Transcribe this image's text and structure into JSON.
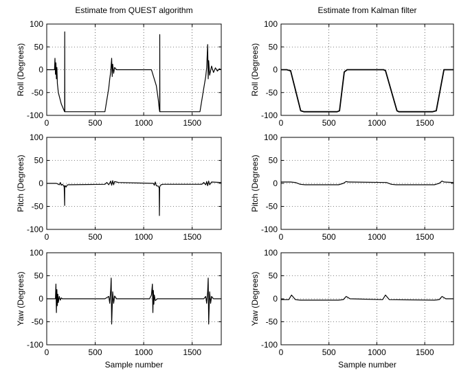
{
  "chart_data": [
    {
      "type": "line",
      "title": "Estimate from QUEST algorithm",
      "ylabel": "Roll (Degrees)",
      "xlabel": "",
      "xlim": [
        0,
        1800
      ],
      "ylim": [
        -100,
        100
      ],
      "xticks": [
        0,
        500,
        1000,
        1500
      ],
      "yticks": [
        -100,
        -50,
        0,
        50,
        100
      ],
      "grid": true,
      "series": [
        {
          "x": [
            0,
            80,
            85,
            90,
            95,
            100,
            105,
            110,
            120,
            150,
            180,
            185,
            186,
            187,
            190,
            600,
            640,
            650,
            660,
            670,
            675,
            680,
            690,
            700,
            720,
            1080,
            1130,
            1150,
            1160,
            1165,
            1166,
            1167,
            1170,
            1580,
            1620,
            1640,
            1650,
            1660,
            1665,
            1670,
            1680,
            1700,
            1720,
            1740,
            1760,
            1780,
            1800
          ],
          "y": [
            0,
            0,
            25,
            -10,
            15,
            -20,
            5,
            -30,
            -50,
            -75,
            -90,
            -92,
            83,
            -92,
            -92,
            -92,
            -40,
            -20,
            -5,
            25,
            -15,
            12,
            -8,
            5,
            0,
            0,
            -35,
            -65,
            -85,
            -92,
            77,
            -92,
            -92,
            -92,
            -40,
            -15,
            5,
            55,
            -20,
            20,
            -12,
            8,
            -6,
            4,
            -3,
            2,
            0
          ]
        }
      ]
    },
    {
      "type": "line",
      "title": "Estimate from Kalman filter",
      "ylabel": "Roll (Degrees)",
      "xlabel": "",
      "xlim": [
        0,
        1800
      ],
      "ylim": [
        -100,
        100
      ],
      "xticks": [
        0,
        500,
        1000,
        1500
      ],
      "yticks": [
        -100,
        -50,
        0,
        50,
        100
      ],
      "grid": true,
      "series": [
        {
          "x": [
            0,
            60,
            90,
            100,
            205,
            240,
            585,
            610,
            660,
            690,
            1070,
            1090,
            1210,
            1230,
            1580,
            1620,
            1700,
            1800
          ],
          "y": [
            0,
            0,
            -2,
            -2,
            -90,
            -92,
            -92,
            -90,
            -5,
            0,
            0,
            -2,
            -90,
            -92,
            -92,
            -90,
            0,
            0
          ]
        }
      ]
    },
    {
      "type": "line",
      "title": "",
      "ylabel": "Pitch (Degrees)",
      "xlabel": "",
      "xlim": [
        0,
        1800
      ],
      "ylim": [
        -100,
        100
      ],
      "xticks": [
        0,
        500,
        1000,
        1500
      ],
      "yticks": [
        -100,
        -50,
        0,
        50,
        100
      ],
      "grid": true,
      "series": [
        {
          "x": [
            0,
            100,
            130,
            140,
            150,
            160,
            175,
            180,
            185,
            186,
            190,
            200,
            210,
            220,
            600,
            620,
            640,
            660,
            670,
            680,
            690,
            700,
            720,
            740,
            1100,
            1110,
            1120,
            1130,
            1150,
            1160,
            1162,
            1165,
            1170,
            1180,
            1200,
            1600,
            1620,
            1640,
            1650,
            1660,
            1670,
            1680,
            1700,
            1800
          ],
          "y": [
            0,
            0,
            -3,
            2,
            -4,
            -2,
            -5,
            -8,
            -48,
            -5,
            -5,
            -8,
            -4,
            -3,
            -2,
            2,
            -3,
            5,
            -4,
            6,
            -3,
            4,
            3,
            2,
            0,
            -4,
            3,
            -5,
            -6,
            -10,
            -70,
            -8,
            -5,
            -3,
            -2,
            -2,
            2,
            -3,
            4,
            -5,
            5,
            -3,
            3,
            2
          ]
        }
      ]
    },
    {
      "type": "line",
      "title": "",
      "ylabel": "Pitch (Degrees)",
      "xlabel": "",
      "xlim": [
        0,
        1800
      ],
      "ylim": [
        -100,
        100
      ],
      "xticks": [
        0,
        500,
        1000,
        1500
      ],
      "yticks": [
        -100,
        -50,
        0,
        50,
        100
      ],
      "grid": true,
      "series": [
        {
          "x": [
            0,
            100,
            150,
            200,
            250,
            600,
            650,
            680,
            700,
            1100,
            1150,
            1200,
            1600,
            1650,
            1680,
            1700,
            1800
          ],
          "y": [
            3,
            3,
            2,
            -2,
            -3,
            -3,
            0,
            4,
            3,
            2,
            -2,
            -3,
            -3,
            0,
            5,
            3,
            2
          ]
        }
      ]
    },
    {
      "type": "line",
      "title": "",
      "ylabel": "Yaw (Degrees)",
      "xlabel": "Sample number",
      "xlim": [
        0,
        1800
      ],
      "ylim": [
        -100,
        100
      ],
      "xticks": [
        0,
        500,
        1000,
        1500
      ],
      "yticks": [
        -100,
        -50,
        0,
        50,
        100
      ],
      "grid": true,
      "series": [
        {
          "x": [
            0,
            90,
            95,
            100,
            105,
            110,
            115,
            120,
            130,
            140,
            150,
            160,
            600,
            640,
            650,
            660,
            665,
            670,
            680,
            690,
            700,
            720,
            1060,
            1080,
            1090,
            1095,
            1100,
            1105,
            1110,
            1120,
            1140,
            1620,
            1640,
            1650,
            1660,
            1665,
            1670,
            1680,
            1690,
            1700,
            1720,
            1800
          ],
          "y": [
            0,
            0,
            32,
            -30,
            20,
            -15,
            10,
            -8,
            5,
            -3,
            2,
            0,
            0,
            5,
            -10,
            20,
            45,
            -55,
            15,
            -10,
            6,
            0,
            0,
            8,
            32,
            -30,
            18,
            -12,
            8,
            -4,
            0,
            0,
            5,
            -10,
            15,
            45,
            -55,
            15,
            -10,
            5,
            0,
            0
          ]
        }
      ]
    },
    {
      "type": "line",
      "title": "",
      "ylabel": "Yaw (Degrees)",
      "xlabel": "Sample number",
      "xlim": [
        0,
        1800
      ],
      "ylim": [
        -100,
        100
      ],
      "xticks": [
        0,
        500,
        1000,
        1500
      ],
      "yticks": [
        -100,
        -50,
        0,
        50,
        100
      ],
      "grid": true,
      "series": [
        {
          "x": [
            0,
            80,
            110,
            150,
            200,
            600,
            650,
            680,
            720,
            1060,
            1090,
            1130,
            1600,
            1650,
            1680,
            1720,
            1800
          ],
          "y": [
            -2,
            -2,
            8,
            -2,
            -3,
            -3,
            -2,
            5,
            0,
            -2,
            8,
            -2,
            -3,
            -2,
            5,
            0,
            0
          ]
        }
      ]
    }
  ]
}
